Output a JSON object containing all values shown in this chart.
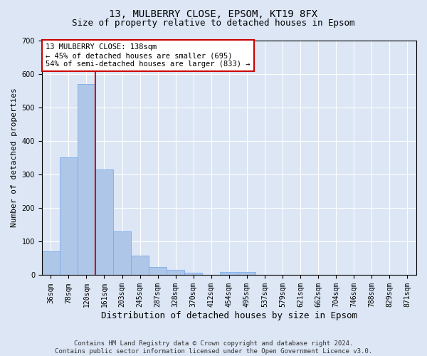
{
  "title1": "13, MULBERRY CLOSE, EPSOM, KT19 8FX",
  "title2": "Size of property relative to detached houses in Epsom",
  "xlabel": "Distribution of detached houses by size in Epsom",
  "ylabel": "Number of detached properties",
  "footnote": "Contains HM Land Registry data © Crown copyright and database right 2024.\nContains public sector information licensed under the Open Government Licence v3.0.",
  "bar_labels": [
    "36sqm",
    "78sqm",
    "120sqm",
    "161sqm",
    "203sqm",
    "245sqm",
    "287sqm",
    "328sqm",
    "370sqm",
    "412sqm",
    "454sqm",
    "495sqm",
    "537sqm",
    "579sqm",
    "621sqm",
    "662sqm",
    "704sqm",
    "746sqm",
    "788sqm",
    "829sqm",
    "871sqm"
  ],
  "bar_values": [
    70,
    350,
    570,
    315,
    130,
    58,
    25,
    15,
    8,
    0,
    10,
    10,
    0,
    0,
    0,
    0,
    0,
    0,
    0,
    0,
    0
  ],
  "bar_color": "#aec6e8",
  "bar_edge_color": "#7aaced",
  "vline_color": "#cc0000",
  "vline_x_index": 2,
  "annotation_text": "13 MULBERRY CLOSE: 138sqm\n← 45% of detached houses are smaller (695)\n54% of semi-detached houses are larger (833) →",
  "annotation_box_color": "#ffffff",
  "annotation_box_edge": "#cc0000",
  "ylim": [
    0,
    700
  ],
  "yticks": [
    0,
    100,
    200,
    300,
    400,
    500,
    600,
    700
  ],
  "bg_color": "#dce6f5",
  "plot_bg_color": "#dce6f5",
  "grid_color": "#ffffff",
  "title1_fontsize": 10,
  "title2_fontsize": 9,
  "xlabel_fontsize": 9,
  "ylabel_fontsize": 8,
  "tick_fontsize": 7,
  "annot_fontsize": 7.5,
  "footnote_fontsize": 6.5
}
